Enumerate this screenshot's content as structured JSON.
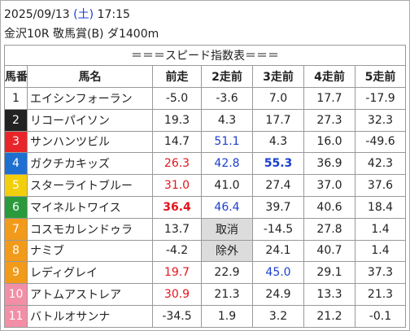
{
  "header": {
    "date": "2025/09/13",
    "weekday": "(土)",
    "time": "17:15",
    "race": "金沢10R 敬馬賞(B) ダ1400m"
  },
  "table": {
    "title": "＝＝＝スピード指数表＝＝＝",
    "columns": [
      "馬番",
      "馬名",
      "前走",
      "2走前",
      "3走前",
      "4走前",
      "5走前"
    ],
    "rows": [
      [
        "1",
        "エイシンフォーラン",
        "-5.0",
        "-3.6",
        "7.0",
        "17.7",
        "-17.9"
      ],
      [
        "2",
        "リコーパイソン",
        "19.3",
        "4.3",
        "17.7",
        "27.3",
        "32.3"
      ],
      [
        "3",
        "サンハンツビル",
        "14.7",
        "51.1",
        "4.3",
        "16.0",
        "-49.6"
      ],
      [
        "4",
        "ガクチカキッズ",
        "26.3",
        "42.8",
        "55.3",
        "36.9",
        "42.3"
      ],
      [
        "5",
        "スターライトブルー",
        "31.0",
        "41.0",
        "27.4",
        "37.0",
        "37.6"
      ],
      [
        "6",
        "マイネルトワイス",
        "36.4",
        "46.4",
        "39.7",
        "40.6",
        "18.4"
      ],
      [
        "7",
        "コスモカレンドゥラ",
        "13.7",
        "取消",
        "-14.5",
        "27.8",
        "1.4"
      ],
      [
        "8",
        "ナミブ",
        "-4.2",
        "除外",
        "24.1",
        "40.7",
        "1.4"
      ],
      [
        "9",
        "レディグレイ",
        "19.7",
        "22.9",
        "45.0",
        "29.1",
        "37.3"
      ],
      [
        "10",
        "アトムアストレア",
        "30.9",
        "21.3",
        "24.9",
        "13.3",
        "21.3"
      ],
      [
        "11",
        "バトルオサンナ",
        "-34.5",
        "1.9",
        "3.2",
        "21.2",
        "-0.1"
      ]
    ]
  }
}
